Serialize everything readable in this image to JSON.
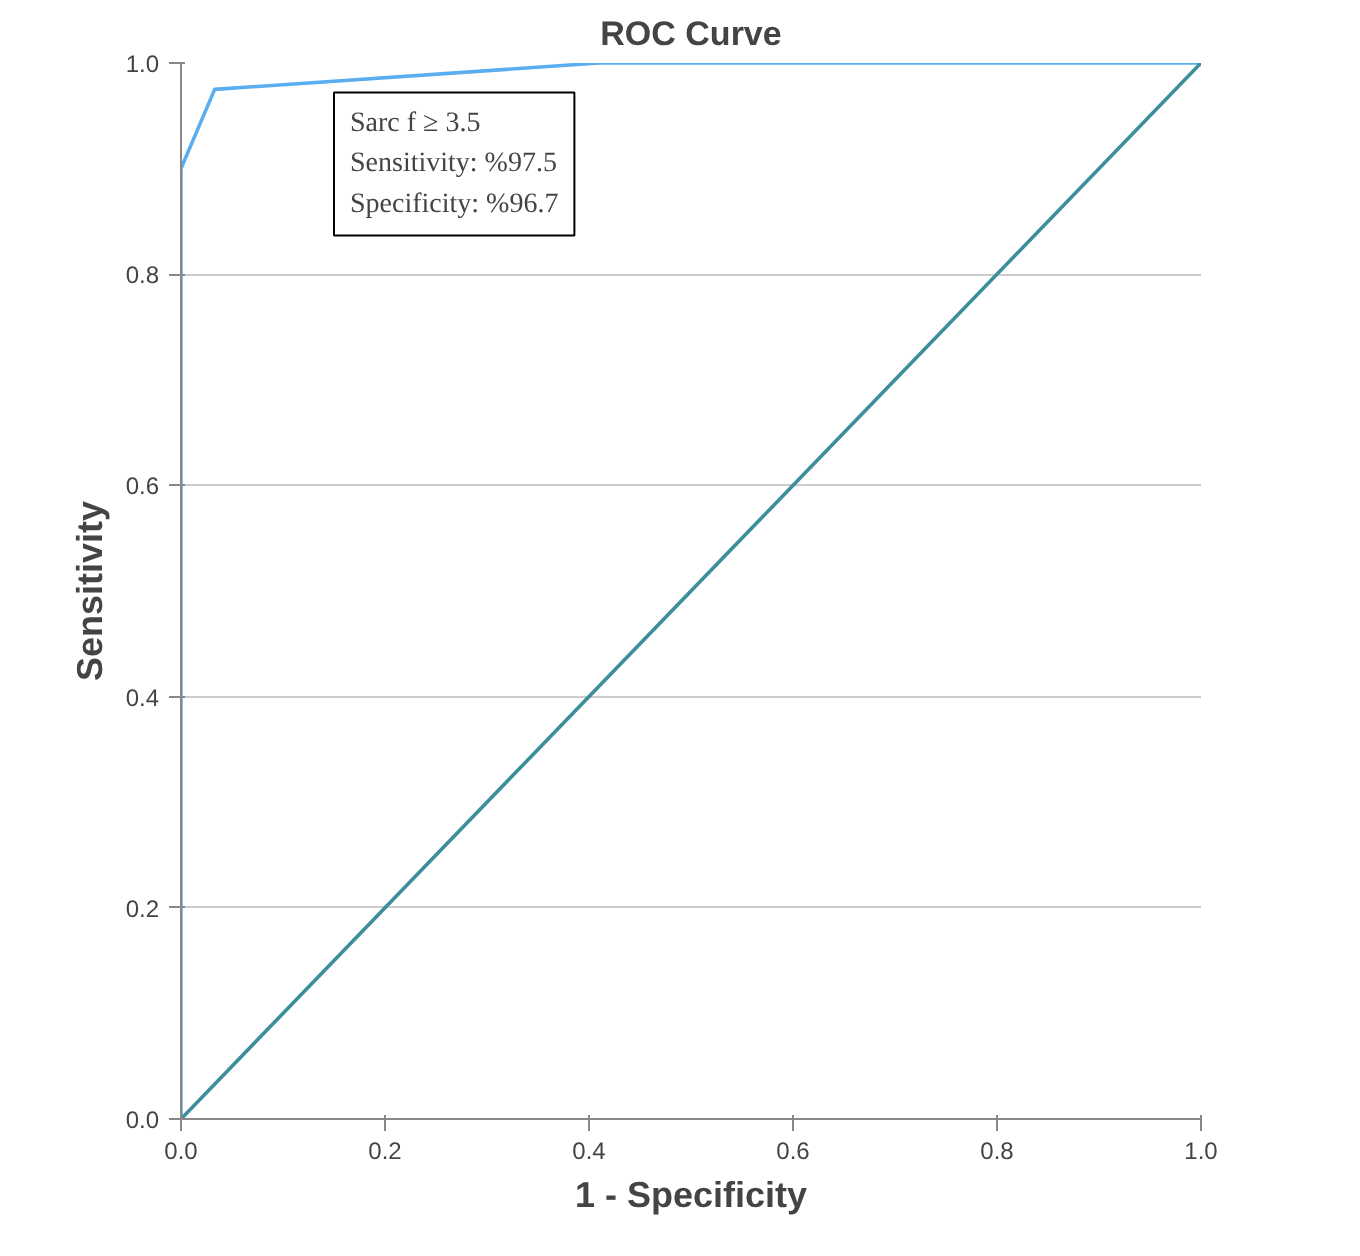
{
  "chart_data": {
    "type": "line",
    "title": "ROC Curve",
    "xlabel": "1 - Specificity",
    "ylabel": "Sensitivity",
    "series": [
      {
        "color": "#5aaef0",
        "x": [
          0,
          0,
          0.033,
          0.41,
          1.0
        ],
        "values": [
          0,
          0.9,
          0.975,
          1.0,
          1.0
        ]
      },
      {
        "color": "#3d8e9c",
        "x": [
          0,
          1.0
        ],
        "values": [
          0,
          1.0
        ]
      }
    ],
    "xlim": [
      0,
      1.0
    ],
    "ylim": [
      0,
      1.0
    ],
    "xticks": [
      {
        "value": 0,
        "label": "0.0"
      },
      0.2,
      0.4,
      0.6,
      0.8,
      {
        "value": 1.0,
        "label": "1.0"
      }
    ],
    "yticks": [
      {
        "value": 0,
        "label": "0.0"
      },
      0.2,
      0.4,
      0.6,
      0.8,
      {
        "value": 1.0,
        "label": "1.0"
      }
    ],
    "grid": "y",
    "marker": "none",
    "line_style": "solid",
    "annotations": [
      "Sarc f ≥ 3.5\nSensitivity: %97.5\nSpecificity: %96.7"
    ]
  }
}
